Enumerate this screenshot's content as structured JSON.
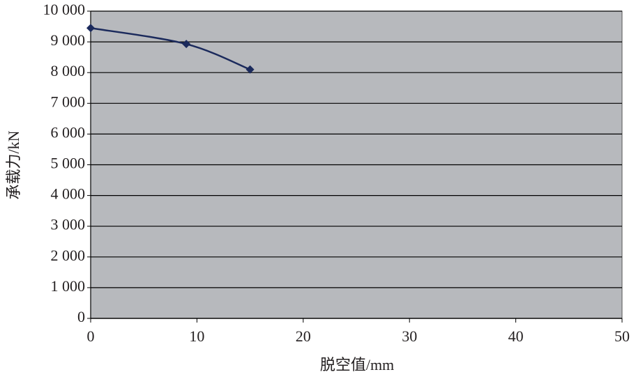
{
  "chart_data": {
    "type": "line",
    "x_label": "脱空值/mm",
    "y_label": "承载力/kN",
    "x": [
      0,
      9,
      15
    ],
    "series": [
      {
        "color": "#1b2a5c",
        "values": [
          9450,
          8930,
          8100
        ]
      }
    ],
    "xlim": [
      0,
      50
    ],
    "xticks": [
      0,
      10,
      20,
      30,
      40,
      50
    ],
    "ylim": [
      0,
      10000
    ],
    "yticks": [
      0,
      {
        "value": 1000,
        "label": "1 000"
      },
      {
        "value": 2000,
        "label": "2 000"
      },
      {
        "value": 3000,
        "label": "3 000"
      },
      {
        "value": 4000,
        "label": "4 000"
      },
      {
        "value": 5000,
        "label": "5 000"
      },
      {
        "value": 6000,
        "label": "6 000"
      },
      {
        "value": 7000,
        "label": "7 000"
      },
      {
        "value": 8000,
        "label": "8 000"
      },
      {
        "value": 9000,
        "label": "9 000"
      },
      {
        "value": 10000,
        "label": "10 000"
      }
    ],
    "grid": true,
    "background": "#b7b9bd"
  }
}
